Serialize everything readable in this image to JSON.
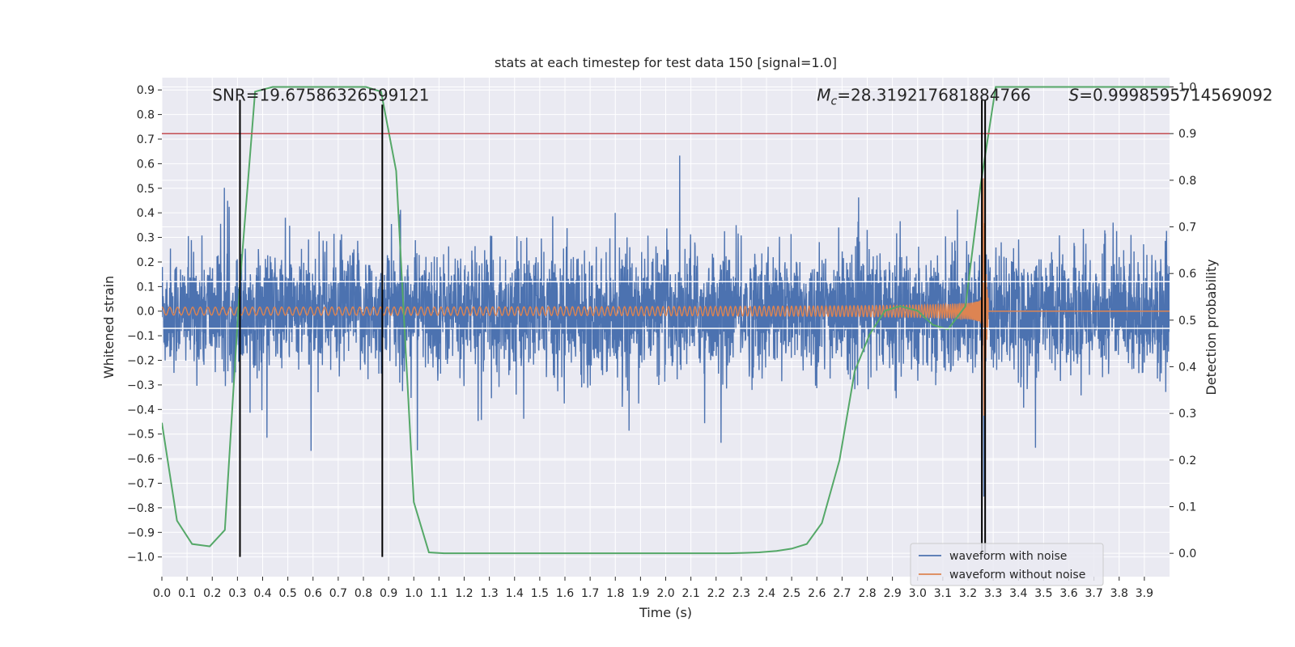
{
  "chart_data": {
    "type": "line",
    "title": "stats at each timestep for test data 150 [signal=1.0]",
    "xlabel": "Time (s)",
    "ylabel_left": "Whitened strain",
    "ylabel_right": "Detection probability",
    "xlim": [
      0.0,
      4.0
    ],
    "ylim_left": [
      -1.08,
      0.95
    ],
    "ylim_right": [
      -0.05,
      1.02
    ],
    "x_ticks": [
      0.0,
      0.1,
      0.2,
      0.3,
      0.4,
      0.5,
      0.6,
      0.7,
      0.8,
      0.9,
      1.0,
      1.1,
      1.2,
      1.3,
      1.4,
      1.5,
      1.6,
      1.7,
      1.8,
      1.9,
      2.0,
      2.1,
      2.2,
      2.3,
      2.4,
      2.5,
      2.6,
      2.7,
      2.8,
      2.9,
      3.0,
      3.1,
      3.2,
      3.3,
      3.4,
      3.5,
      3.6,
      3.7,
      3.8,
      3.9
    ],
    "x_tick_labels": [
      "0.0",
      "0.1",
      "0.2",
      "0.3",
      "0.4",
      "0.5",
      "0.6",
      "0.7",
      "0.8",
      "0.9",
      "1.0",
      "1.1",
      "1.2",
      "1.3",
      "1.4",
      "1.5",
      "1.6",
      "1.7",
      "1.8",
      "1.9",
      "2.0",
      "2.1",
      "2.2",
      "2.3",
      "2.4",
      "2.5",
      "2.6",
      "2.7",
      "2.8",
      "2.9",
      "3.0",
      "3.1",
      "3.2",
      "3.3",
      "3.4",
      "3.5",
      "3.6",
      "3.7",
      "3.8",
      "3.9"
    ],
    "y_ticks_left": [
      0.9,
      0.8,
      0.7,
      0.6,
      0.5,
      0.4,
      0.3,
      0.2,
      0.1,
      0.0,
      -0.1,
      -0.2,
      -0.3,
      -0.4,
      -0.5,
      -0.6,
      -0.7,
      -0.8,
      -0.9,
      -1.0
    ],
    "y_tick_labels_left": [
      "0.9",
      "0.8",
      "0.7",
      "0.6",
      "0.5",
      "0.4",
      "0.3",
      "0.2",
      "0.1",
      "0.0",
      "−0.1",
      "−0.2",
      "−0.3",
      "−0.4",
      "−0.5",
      "−0.6",
      "−0.7",
      "−0.8",
      "−0.9",
      "−1.0"
    ],
    "y_ticks_right": [
      1.0,
      0.9,
      0.8,
      0.7,
      0.6,
      0.5,
      0.4,
      0.3,
      0.2,
      0.1,
      0.0
    ],
    "y_tick_labels_right": [
      "1.0",
      "0.9",
      "0.8",
      "0.7",
      "0.6",
      "0.5",
      "0.4",
      "0.3",
      "0.2",
      "0.1",
      "0.0"
    ],
    "grid": true,
    "legend_placement": "lower-right",
    "series": [
      {
        "name": "waveform with noise",
        "axis": "left",
        "color": "#4c72b0",
        "kind": "noise",
        "noise_sigma": 0.12,
        "noise_peak_max": 0.62,
        "noise_peak_min": -0.58
      },
      {
        "name": "waveform without noise",
        "axis": "left",
        "color": "#dd8452",
        "kind": "chirp",
        "merger_time": 3.26,
        "start_amplitude": 0.01,
        "peak_amplitude": 0.32,
        "ringdown_end": 3.28,
        "ringdown_min": -0.62,
        "ringdown_max": 0.68
      },
      {
        "name": "",
        "axis": "right",
        "color": "#55a868",
        "kind": "detection_probability",
        "x": [
          0.0,
          0.06,
          0.12,
          0.19,
          0.25,
          0.31,
          0.37,
          0.44,
          0.5,
          0.56,
          0.62,
          0.69,
          0.75,
          0.81,
          0.87,
          0.93,
          1.0,
          1.06,
          1.12,
          1.19,
          1.25,
          1.31,
          1.37,
          1.44,
          1.5,
          1.56,
          1.62,
          1.69,
          1.75,
          1.81,
          1.87,
          1.93,
          2.0,
          2.06,
          2.12,
          2.19,
          2.25,
          2.31,
          2.37,
          2.44,
          2.5,
          2.56,
          2.62,
          2.69,
          2.75,
          2.81,
          2.87,
          2.93,
          3.0,
          3.06,
          3.12,
          3.19,
          3.25,
          3.31,
          3.37,
          3.44,
          3.5,
          3.56,
          3.62,
          3.69,
          3.75,
          3.81,
          3.87,
          3.93,
          4.0
        ],
        "y": [
          0.28,
          0.07,
          0.02,
          0.015,
          0.05,
          0.58,
          0.99,
          1.0,
          1.0,
          1.0,
          1.0,
          1.0,
          1.0,
          1.0,
          0.99,
          0.82,
          0.11,
          0.002,
          0.0,
          0.0,
          0.0,
          0.0,
          0.0,
          0.0,
          0.0,
          0.0,
          0.0,
          0.0,
          0.0,
          0.0,
          0.0,
          0.0,
          0.0,
          0.0,
          0.0,
          0.0,
          0.0,
          0.001,
          0.002,
          0.005,
          0.01,
          0.02,
          0.065,
          0.2,
          0.39,
          0.47,
          0.52,
          0.53,
          0.52,
          0.49,
          0.48,
          0.53,
          0.79,
          1.0,
          1.0,
          1.0,
          1.0,
          1.0,
          1.0,
          1.0,
          1.0,
          1.0,
          1.0,
          1.0,
          1.0
        ]
      }
    ],
    "threshold_line": {
      "axis": "right",
      "value": 0.9,
      "color": "#c44e52"
    },
    "white_hlines_left": [
      0.12,
      -0.07
    ],
    "vertical_lines": [
      {
        "x": 0.31,
        "color": "#000000",
        "ymin": -1.0,
        "ymax": 0.86
      },
      {
        "x": 0.875,
        "color": "#000000",
        "ymin": -1.0,
        "ymax": 0.84
      },
      {
        "x": 3.255,
        "color": "#000000",
        "ymin": -1.0,
        "ymax": 0.86
      },
      {
        "x": 3.268,
        "color": "#000000",
        "ymin": -1.0,
        "ymax": 0.86
      }
    ],
    "annotations": [
      {
        "text": "SNR=19.67586326599121",
        "x": 0.2,
        "y": 0.88
      },
      {
        "text": "Mc=28.319217681884766",
        "math": true,
        "x": 2.6,
        "y": 0.88
      },
      {
        "text": "S=0.9998595714569092",
        "math_s": true,
        "x": 3.6,
        "y": 0.88
      }
    ],
    "legend": [
      "waveform with noise",
      "waveform without noise"
    ]
  }
}
